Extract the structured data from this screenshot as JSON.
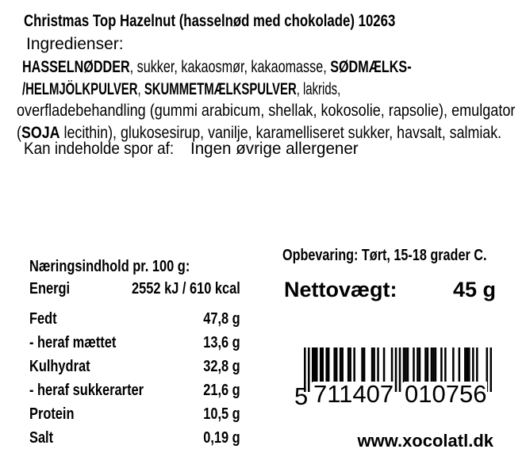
{
  "label": {
    "title": "Christmas Top Hazelnut (hasselnød med chokolade) 10263",
    "ingredients_label": "Ingredienser:",
    "ingredients_lines": [
      [
        {
          "t": "HASSELNØDDER",
          "b": true
        },
        {
          "t": ", sukker, kakaosmør, kakaomasse, ",
          "b": false
        },
        {
          "t": "SØDMÆLKS-",
          "b": true
        }
      ],
      [
        {
          "t": "/HELMJÖLKPULVER",
          "b": true
        },
        {
          "t": ", ",
          "b": false
        },
        {
          "t": "SKUMMETMÆLKSPULVER",
          "b": true
        },
        {
          "t": ", lakrids,",
          "b": false
        }
      ],
      [
        {
          "t": "overfladebehandling (gummi arabicum, shellak, kokosolie, rapsolie), emulgator",
          "b": false
        }
      ],
      [
        {
          "t": "(",
          "b": false
        },
        {
          "t": "SOJA",
          "b": true
        },
        {
          "t": " lecithin), glukosesirup, vanilje, karamelliseret sukker, havsalt, salmiak.",
          "b": false
        }
      ]
    ],
    "traces_label": "Kan indeholde spor af:",
    "traces_value": "Ingen øvrige allergener"
  },
  "nutrition": {
    "header": "Næringsindhold pr. 100 g:",
    "rows": [
      {
        "label": "Energi",
        "value": "2552 kJ / 610 kcal"
      },
      {
        "label": "Fedt",
        "value": "47,8 g"
      },
      {
        "label": "- heraf mættet",
        "value": "13,6 g"
      },
      {
        "label": "Kulhydrat",
        "value": "32,8 g"
      },
      {
        "label": "- heraf sukkerarter",
        "value": "21,6 g"
      },
      {
        "label": "Protein",
        "value": "10,5 g"
      },
      {
        "label": "Salt",
        "value": "0,19 g"
      }
    ]
  },
  "storage": "Opbevaring: Tørt, 15-18 grader C.",
  "net_weight": {
    "label": "Nettovægt:",
    "value": "45 g"
  },
  "barcode": {
    "ean": "5711407010756",
    "groups": [
      "5",
      "711407",
      "010756"
    ]
  },
  "website": "www.xocolatl.dk"
}
